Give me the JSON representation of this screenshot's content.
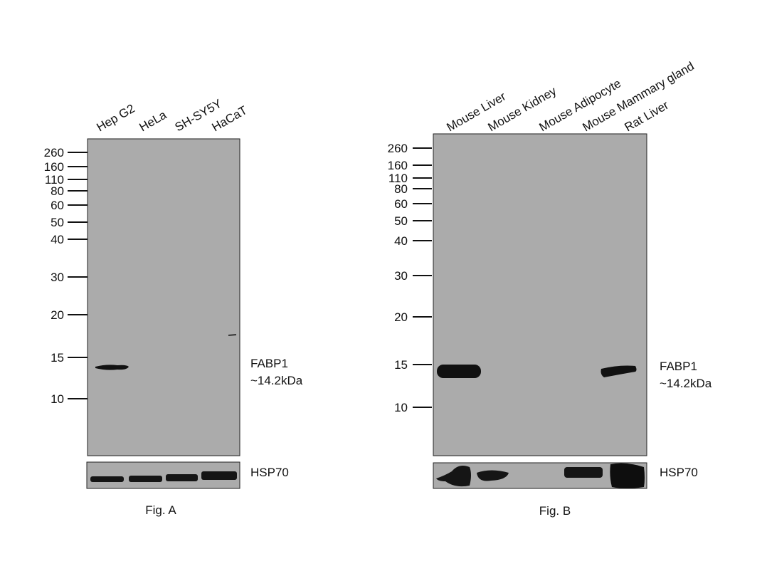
{
  "panels": [
    {
      "lanes": [
        "Hep G2",
        "HeLa",
        "SH-SY5Y",
        "HaCaT"
      ],
      "markers": [
        "260",
        "160",
        "110",
        "80",
        "60",
        "50",
        "40",
        "30",
        "20",
        "15",
        "10"
      ],
      "target": "FABP1",
      "target_size": "~14.2kDa",
      "control": "HSP70",
      "caption": "Fig. A"
    },
    {
      "lanes": [
        "Mouse Liver",
        "Mouse Kidney",
        "Mouse Adipocyte",
        "Mouse Mammary gland",
        "Rat Liver"
      ],
      "markers": [
        "260",
        "160",
        "110",
        "80",
        "60",
        "50",
        "40",
        "30",
        "20",
        "15",
        "10"
      ],
      "target": "FABP1",
      "target_size": "~14.2kDa",
      "control": "HSP70",
      "caption": "Fig. B"
    }
  ]
}
